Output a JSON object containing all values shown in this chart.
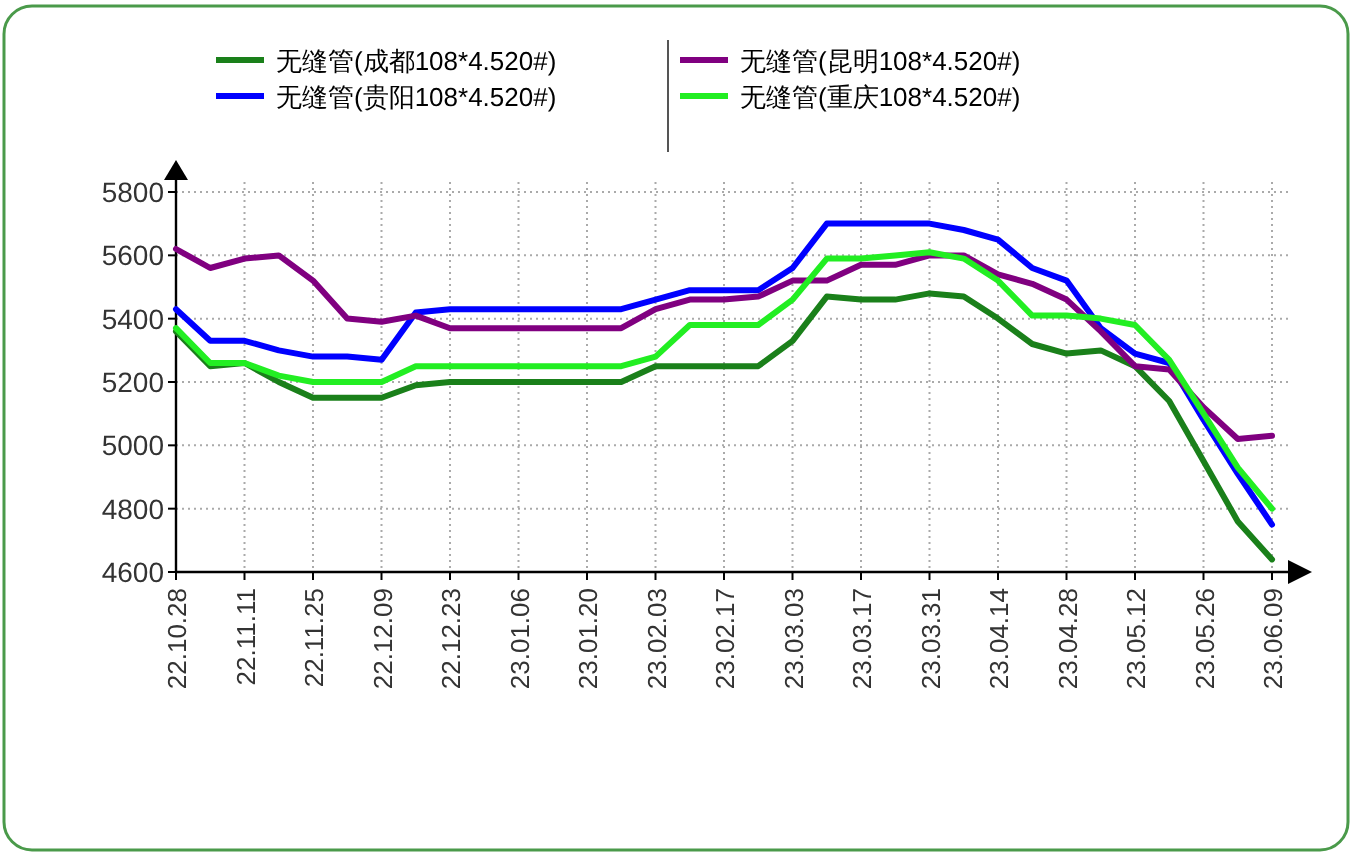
{
  "chart_data": {
    "type": "line",
    "categories": [
      "22.10.28",
      null,
      "22.11.11",
      null,
      "22.11.25",
      null,
      "22.12.09",
      null,
      "22.12.23",
      null,
      "23.01.06",
      null,
      "23.01.20",
      null,
      "23.02.03",
      null,
      "23.02.17",
      null,
      "23.03.03",
      null,
      "23.03.17",
      null,
      "23.03.31",
      null,
      "23.04.14",
      null,
      "23.04.28",
      null,
      "23.05.12",
      null,
      "23.05.26",
      null,
      "23.06.09"
    ],
    "series": [
      {
        "name": "无缝管(成都108*4.520#)",
        "color": "#1a801a",
        "values": [
          5360,
          5250,
          5260,
          5200,
          5150,
          5150,
          5150,
          5190,
          5200,
          5200,
          5200,
          5200,
          5200,
          5200,
          5250,
          5250,
          5250,
          5250,
          5330,
          5470,
          5460,
          5460,
          5480,
          5470,
          5400,
          5320,
          5290,
          5300,
          5250,
          5140,
          4950,
          4760,
          4640
        ]
      },
      {
        "name": "无缝管(贵阳108*4.520#)",
        "color": "#0000ff",
        "values": [
          5430,
          5330,
          5330,
          5300,
          5280,
          5280,
          5270,
          5420,
          5430,
          5430,
          5430,
          5430,
          5430,
          5430,
          5460,
          5490,
          5490,
          5490,
          5560,
          5700,
          5700,
          5700,
          5700,
          5680,
          5650,
          5560,
          5520,
          5370,
          5290,
          5260,
          5080,
          4910,
          4750
        ]
      },
      {
        "name": "无缝管(昆明108*4.520#)",
        "color": "#800080",
        "values": [
          5620,
          5560,
          5590,
          5600,
          5520,
          5400,
          5390,
          5410,
          5370,
          5370,
          5370,
          5370,
          5370,
          5370,
          5430,
          5460,
          5460,
          5470,
          5520,
          5520,
          5570,
          5570,
          5600,
          5600,
          5540,
          5510,
          5460,
          5360,
          5250,
          5240,
          5120,
          5020,
          5030
        ]
      },
      {
        "name": "无缝管(重庆108*4.520#)",
        "color": "#22ee22",
        "values": [
          5370,
          5260,
          5260,
          5220,
          5200,
          5200,
          5200,
          5250,
          5250,
          5250,
          5250,
          5250,
          5250,
          5250,
          5280,
          5380,
          5380,
          5380,
          5460,
          5590,
          5590,
          5600,
          5610,
          5590,
          5520,
          5410,
          5410,
          5400,
          5380,
          5270,
          5100,
          4930,
          4800
        ]
      }
    ],
    "ylim": [
      4600,
      5800
    ],
    "yticks": [
      4600,
      4800,
      5000,
      5200,
      5400,
      5600,
      5800
    ],
    "grid": true,
    "legend": "top",
    "line_style": "solid",
    "marker": "none"
  }
}
